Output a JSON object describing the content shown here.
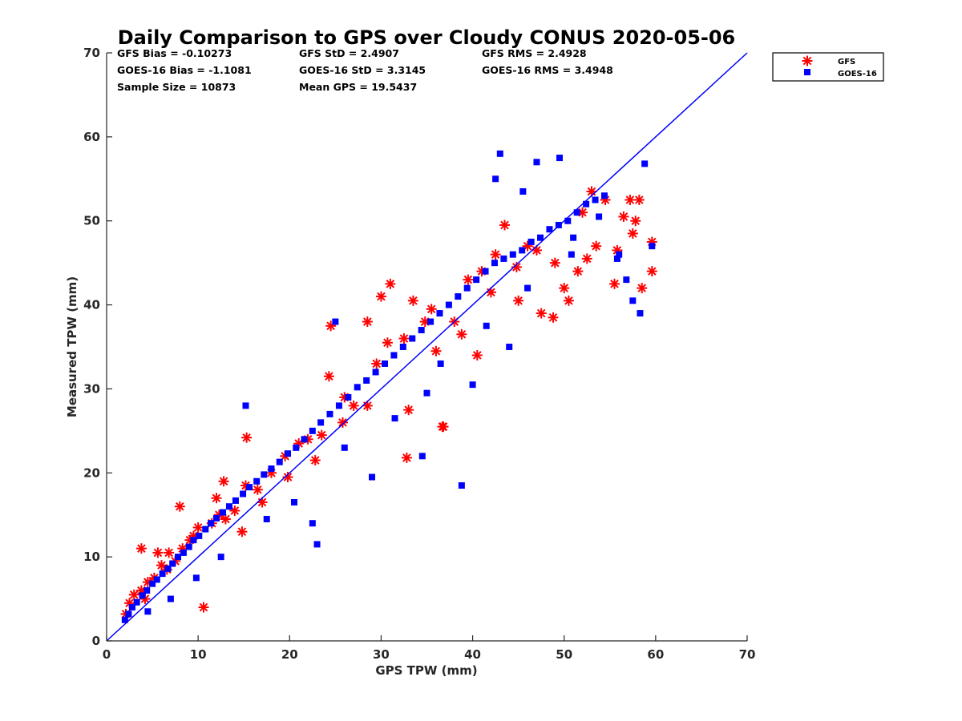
{
  "chart_data": {
    "type": "scatter",
    "title": "Daily Comparison to GPS over Cloudy CONUS 2020-05-06",
    "xlabel": "GPS TPW (mm)",
    "ylabel": "Measured TPW (mm)",
    "xlim": [
      0,
      70
    ],
    "ylim": [
      0,
      70
    ],
    "xticks": [
      "0",
      "10",
      "20",
      "30",
      "40",
      "50",
      "60",
      "70"
    ],
    "yticks": [
      "0",
      "10",
      "20",
      "30",
      "40",
      "50",
      "60",
      "70"
    ],
    "grid": false,
    "legend_position": "top-right, outside plot",
    "stats": {
      "gfs_bias": "GFS Bias = -0.10273",
      "gfs_std": "GFS StD = 2.4907",
      "gfs_rms": "GFS RMS = 2.4928",
      "goes_bias": "GOES-16 Bias = -1.1081",
      "goes_std": "GOES-16 StD = 3.3145",
      "goes_rms": "GOES-16 RMS = 3.4948",
      "sample_size": "Sample Size = 10873",
      "mean_gps": "Mean GPS = 19.5437"
    },
    "reference_line": {
      "x": [
        0,
        70
      ],
      "y": [
        0,
        70
      ],
      "color": "#0000ff"
    },
    "series": [
      {
        "name": "GFS",
        "marker": "asterisk",
        "color": "#ff0000",
        "x": [
          2.1,
          2.5,
          3.0,
          3.8,
          4.5,
          5.2,
          6.0,
          6.8,
          7.5,
          8.3,
          9.1,
          10.0,
          10.6,
          11.5,
          12.3,
          13.0,
          14.0,
          15.2,
          16.5,
          18.0,
          19.5,
          21.0,
          22.0,
          23.5,
          24.5,
          25.8,
          27.0,
          28.5,
          30.0,
          31.0,
          32.5,
          33.5,
          34.8,
          36.0,
          36.8,
          38.0,
          39.5,
          41.0,
          42.5,
          43.5,
          44.8,
          46.0,
          47.5,
          49.0,
          50.5,
          51.5,
          52.5,
          53.5,
          54.5,
          55.5,
          56.5,
          57.2,
          57.8,
          58.5,
          59.6,
          3.8,
          5.6,
          8.0,
          12.8,
          15.3,
          24.3,
          28.5,
          30.7,
          32.8,
          36.7,
          40.5,
          48.8,
          53.0,
          57.5,
          4.2,
          6.6,
          9.5,
          12.0,
          14.8,
          17.0,
          19.8,
          22.8,
          26.0,
          29.5,
          33.0,
          35.5,
          38.8,
          42.0,
          45.0,
          47.0,
          50.0,
          52.0,
          55.8,
          58.2,
          59.6
        ],
        "y": [
          3.2,
          4.5,
          5.5,
          6.0,
          7.0,
          7.5,
          9.0,
          10.5,
          9.5,
          11.0,
          12.0,
          13.5,
          4.0,
          14.0,
          15.0,
          14.5,
          15.5,
          18.5,
          18.0,
          20.0,
          22.0,
          23.5,
          24.0,
          24.5,
          37.5,
          26.0,
          28.0,
          38.0,
          41.0,
          42.5,
          36.0,
          40.5,
          38.0,
          34.5,
          25.5,
          38.0,
          43.0,
          44.0,
          46.0,
          49.5,
          44.5,
          47.0,
          39.0,
          45.0,
          40.5,
          44.0,
          45.5,
          47.0,
          52.5,
          42.5,
          50.5,
          52.5,
          50.0,
          42.0,
          44.0,
          11.0,
          10.5,
          16.0,
          19.0,
          24.2,
          31.5,
          28.0,
          35.5,
          21.8,
          25.5,
          34.0,
          38.5,
          53.5,
          48.5,
          5.0,
          8.5,
          12.5,
          17.0,
          13.0,
          16.5,
          19.5,
          21.5,
          29.0,
          33.0,
          27.5,
          39.5,
          36.5,
          41.5,
          40.5,
          46.5,
          42.0,
          51.0,
          46.5,
          52.5,
          47.5
        ]
      },
      {
        "name": "GOES-16",
        "marker": "square",
        "color": "#0000ff",
        "x": [
          2.0,
          2.4,
          2.8,
          3.3,
          3.9,
          4.4,
          5.0,
          5.5,
          6.1,
          6.7,
          7.2,
          7.8,
          8.4,
          9.0,
          9.5,
          10.1,
          10.8,
          11.4,
          12.0,
          12.7,
          13.4,
          14.1,
          14.9,
          15.6,
          16.4,
          17.2,
          18.0,
          18.9,
          19.8,
          20.7,
          21.6,
          22.5,
          23.4,
          24.4,
          25.4,
          26.4,
          27.4,
          28.4,
          29.4,
          30.4,
          31.4,
          32.4,
          33.4,
          34.4,
          35.4,
          36.4,
          37.4,
          38.4,
          39.4,
          40.4,
          41.4,
          42.4,
          43.4,
          44.4,
          45.4,
          46.4,
          47.4,
          48.4,
          49.4,
          50.4,
          51.4,
          52.4,
          53.4,
          54.4,
          55.8,
          56.8,
          57.5,
          58.3,
          58.8,
          59.6,
          43.0,
          47.0,
          49.5,
          45.5,
          42.5,
          25.0,
          15.2,
          23.0,
          34.5,
          38.8,
          51.0,
          4.5,
          7.0,
          9.8,
          12.5,
          17.5,
          20.5,
          26.0,
          31.5,
          36.5,
          41.5,
          46.0,
          50.8,
          53.8,
          56.0,
          22.5,
          29.0,
          35.0,
          40.0,
          44.0
        ],
        "y": [
          2.5,
          3.2,
          4.0,
          4.6,
          5.4,
          6.0,
          6.8,
          7.3,
          8.0,
          8.6,
          9.2,
          10.0,
          10.5,
          11.2,
          12.0,
          12.5,
          13.3,
          14.0,
          14.6,
          15.3,
          16.0,
          16.7,
          17.5,
          18.3,
          19.0,
          19.8,
          20.5,
          21.3,
          22.3,
          23.0,
          24.0,
          25.0,
          26.0,
          27.0,
          28.0,
          29.0,
          30.2,
          31.0,
          32.0,
          33.0,
          34.0,
          35.0,
          36.0,
          37.0,
          38.0,
          39.0,
          40.0,
          41.0,
          42.0,
          43.0,
          44.0,
          45.0,
          45.5,
          46.0,
          46.5,
          47.5,
          48.0,
          49.0,
          49.5,
          50.0,
          51.0,
          52.0,
          52.5,
          53.0,
          45.5,
          43.0,
          40.5,
          39.0,
          56.8,
          47.0,
          58.0,
          57.0,
          57.5,
          53.5,
          55.0,
          38.0,
          28.0,
          11.5,
          22.0,
          18.5,
          48.0,
          3.5,
          5.0,
          7.5,
          10.0,
          14.5,
          16.5,
          23.0,
          26.5,
          33.0,
          37.5,
          42.0,
          46.0,
          50.5,
          46.0,
          14.0,
          19.5,
          29.5,
          30.5,
          35.0
        ]
      }
    ]
  }
}
